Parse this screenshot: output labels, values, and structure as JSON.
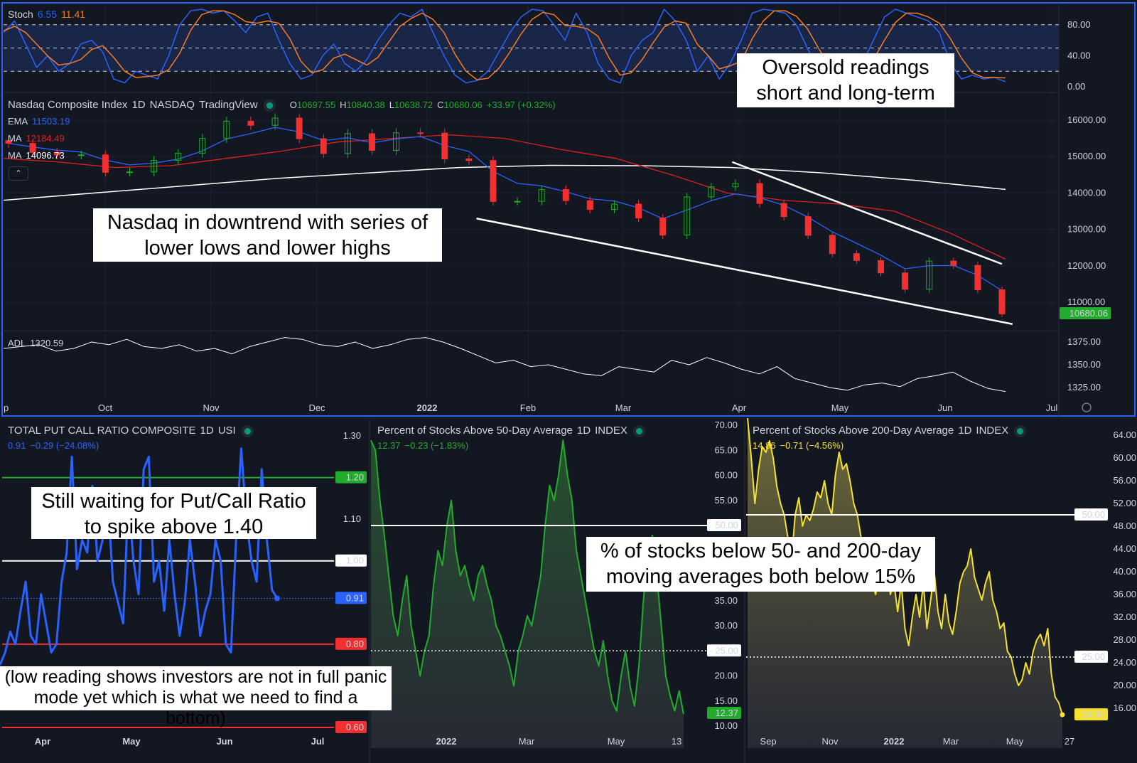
{
  "annotations": {
    "oversold": "Oversold readings short and long-term",
    "downtrend": "Nasdaq in downtrend with series of lower lows and lower highs",
    "putcall_wait": "Still waiting for Put/Call Ratio to spike above 1.40",
    "low_reading": "(low reading shows investors are not in full panic mode yet which is what we need to find a bottom)",
    "breadth": "% of stocks below 50- and 200-day moving averages both below 15%"
  },
  "colors": {
    "background": "#131722",
    "up": "#22ab2c",
    "down": "#f23030",
    "ema": "#2962ff",
    "ma50": "#e02020",
    "ma200": "#ffffff",
    "stoch_k": "#2962ff",
    "stoch_d": "#f57c21",
    "putcall": "#2962ff",
    "pct50": "#22ab2c",
    "pct200": "#f5e130",
    "accent_border": "#2962ff"
  },
  "stoch": {
    "label": "Stoch",
    "k_value": "6.55",
    "d_value": "11.41"
  },
  "main": {
    "title": "Nasdaq Composite Index",
    "interval": "1D",
    "exchange": "NASDAQ",
    "source": "TradingView",
    "o_label": "O",
    "o": "10697.55",
    "h_label": "H",
    "h": "10840.38",
    "l_label": "L",
    "l": "10638.72",
    "c_label": "C",
    "c": "10680.06",
    "change": "+33.97 (+0.32%)",
    "ema_label": "EMA",
    "ema": "11503.19",
    "ma1_label": "MA",
    "ma1": "12184.49",
    "ma2_label": "MA",
    "ma2": "14096.73",
    "price_tag": "10680.06",
    "collapse_icon": "chevron-up"
  },
  "adl": {
    "label": "ADL",
    "value": "1320.59"
  },
  "putcall_panel": {
    "title": "TOTAL PUT CALL RATIO COMPOSITE",
    "interval": "1D",
    "exchange": "USI",
    "value": "0.91",
    "change": "−0.29 (−24.08%)"
  },
  "pct50_panel": {
    "title": "Percent of Stocks Above 50-Day Average",
    "interval": "1D",
    "exchange": "INDEX",
    "value": "12.37",
    "change": "−0.23 (−1.83%)"
  },
  "pct200_panel": {
    "title": "Percent of Stocks Above 200-Day Average",
    "interval": "1D",
    "exchange": "INDEX",
    "value": "14.86",
    "change": "−0.71 (−4.56%)"
  },
  "chart_data": [
    {
      "type": "line",
      "name": "Stoch",
      "ylim": [
        0,
        100
      ],
      "bands": [
        20,
        50,
        80
      ],
      "yticks": [
        "80.00",
        "40.00",
        "0.00"
      ],
      "k": [
        70,
        85,
        55,
        25,
        40,
        20,
        30,
        55,
        60,
        45,
        10,
        5,
        20,
        15,
        10,
        40,
        80,
        98,
        100,
        95,
        98,
        85,
        70,
        90,
        95,
        60,
        30,
        10,
        15,
        40,
        55,
        30,
        20,
        35,
        60,
        80,
        95,
        90,
        100,
        70,
        40,
        15,
        5,
        8,
        20,
        45,
        70,
        90,
        100,
        98,
        80,
        60,
        95,
        70,
        30,
        10,
        5,
        40,
        60,
        70,
        100,
        85,
        60,
        20,
        40,
        10,
        30,
        60,
        95,
        100,
        98,
        95,
        80,
        50,
        20,
        10,
        8,
        15,
        30,
        60,
        90,
        100,
        95,
        90,
        85,
        70,
        30,
        10,
        15,
        10,
        12,
        6.55
      ],
      "d": [
        72,
        78,
        70,
        55,
        40,
        28,
        30,
        35,
        48,
        53,
        38,
        20,
        12,
        13,
        15,
        22,
        43,
        73,
        93,
        98,
        98,
        93,
        84,
        82,
        85,
        82,
        62,
        33,
        18,
        22,
        37,
        42,
        35,
        28,
        38,
        58,
        78,
        88,
        95,
        87,
        70,
        42,
        20,
        9,
        11,
        24,
        45,
        68,
        87,
        96,
        93,
        79,
        78,
        75,
        65,
        37,
        15,
        18,
        35,
        57,
        77,
        85,
        82,
        55,
        40,
        23,
        27,
        33,
        62,
        85,
        98,
        98,
        91,
        75,
        50,
        27,
        13,
        11,
        18,
        35,
        60,
        83,
        95,
        95,
        90,
        82,
        62,
        37,
        18,
        12,
        12,
        11.41
      ]
    },
    {
      "type": "candlestick",
      "name": "Nasdaq Composite Index",
      "period": "2021-09-03 to 2022-06-16 (weekly sampled)",
      "ylim": [
        10500,
        16500
      ],
      "yticks": [
        "16000.00",
        "15000.00",
        "14000.00",
        "13000.00",
        "12000.00",
        "11000.00"
      ],
      "xticks": [
        "Oct",
        "Nov",
        "Dec",
        "2022",
        "Feb",
        "Mar",
        "Apr",
        "May",
        "Jun",
        "Jul"
      ],
      "close": [
        15363,
        15115,
        15044,
        15047,
        14567,
        14579,
        14897,
        15090,
        15498,
        15971,
        15860,
        16057,
        15491,
        15085,
        15630,
        15169,
        15653,
        15645,
        14936,
        14893,
        13768,
        13770,
        14098,
        13791,
        13548,
        13694,
        13313,
        12843,
        13893,
        14169,
        14261,
        13711,
        13351,
        12839,
        12335,
        12145,
        11805,
        11355,
        12131,
        12013,
        11340,
        10680.06
      ],
      "ma50": [
        14950,
        14850,
        14700,
        14750,
        14950,
        15150,
        15400,
        15500,
        15600,
        15500,
        15200,
        14950,
        14500,
        14000,
        13800,
        13700,
        13500,
        12900,
        12184.49
      ],
      "ma200": [
        13800,
        14000,
        14200,
        14400,
        14550,
        14700,
        14760,
        14750,
        14700,
        14550,
        14350,
        14096.73
      ],
      "trendlines": [
        {
          "from": [
            "2022-03-29",
            14850
          ],
          "to": [
            "2022-06-14",
            12050
          ]
        },
        {
          "from": [
            "2022-01-15",
            13300
          ],
          "to": [
            "2022-06-17",
            10400
          ]
        }
      ]
    },
    {
      "type": "line",
      "name": "ADL",
      "ylim": [
        1312,
        1390
      ],
      "yticks": [
        "1375.00",
        "1350.00",
        "1325.00"
      ],
      "values": [
        1368,
        1370,
        1372,
        1365,
        1368,
        1375,
        1372,
        1378,
        1370,
        1368,
        1372,
        1365,
        1368,
        1362,
        1370,
        1375,
        1380,
        1378,
        1372,
        1370,
        1375,
        1368,
        1372,
        1378,
        1380,
        1375,
        1368,
        1360,
        1352,
        1355,
        1348,
        1350,
        1345,
        1340,
        1338,
        1348,
        1345,
        1342,
        1355,
        1350,
        1358,
        1352,
        1345,
        1340,
        1348,
        1335,
        1330,
        1325,
        1322,
        1328,
        1330,
        1326,
        1335,
        1338,
        1342,
        1332,
        1324,
        1320.59
      ]
    },
    {
      "type": "line",
      "name": "TOTAL PUT CALL RATIO COMPOSITE",
      "ylim": [
        0.59,
        1.33
      ],
      "yticks": [
        "1.30",
        "1.10"
      ],
      "levels": [
        {
          "v": 1.2,
          "label": "1.20",
          "color": "#22ab2c"
        },
        {
          "v": 1.0,
          "label": "1.00",
          "color": "#ffffff"
        },
        {
          "v": 0.8,
          "label": "0.80",
          "color": "#f23030"
        },
        {
          "v": 0.6,
          "label": "0.60",
          "color": "#f23030"
        }
      ],
      "xticks": [
        "Apr",
        "May",
        "Jun",
        "Jul"
      ],
      "values": [
        0.75,
        0.78,
        0.83,
        0.8,
        0.88,
        0.95,
        0.82,
        0.8,
        0.92,
        0.85,
        0.78,
        0.8,
        0.95,
        1.02,
        1.25,
        0.98,
        1.05,
        1.02,
        1.18,
        1.0,
        1.05,
        1.15,
        0.95,
        0.9,
        0.85,
        1.15,
        1.0,
        0.92,
        1.22,
        1.25,
        0.95,
        1.0,
        0.88,
        1.05,
        0.92,
        0.82,
        0.9,
        1.05,
        0.95,
        0.82,
        0.88,
        0.92,
        1.05,
        1.0,
        0.8,
        0.78,
        1.05,
        1.27,
        1.1,
        1.0,
        0.95,
        1.22,
        1.05,
        0.93,
        0.91
      ]
    },
    {
      "type": "area",
      "name": "Percent of Stocks Above 50-Day Average",
      "ylim": [
        9,
        71
      ],
      "yticks": [
        "70.00",
        "65.00",
        "60.00",
        "55.00",
        "35.00",
        "30.00",
        "20.00",
        "15.00",
        "10.00"
      ],
      "levels": [
        {
          "v": 50,
          "label": "50.00",
          "style": "solid"
        },
        {
          "v": 25,
          "label": "25.00",
          "style": "dotted"
        }
      ],
      "xticks": [
        "2022",
        "Mar",
        "May",
        "13"
      ],
      "values": [
        67,
        65,
        55,
        48,
        40,
        32,
        28,
        35,
        40,
        30,
        25,
        20,
        25,
        28,
        38,
        45,
        42,
        50,
        55,
        45,
        40,
        42,
        38,
        35,
        40,
        42,
        38,
        35,
        30,
        28,
        25,
        22,
        18,
        25,
        28,
        32,
        30,
        35,
        40,
        50,
        58,
        55,
        60,
        67,
        60,
        55,
        45,
        40,
        35,
        30,
        25,
        22,
        27,
        20,
        15,
        13,
        20,
        25,
        18,
        14,
        22,
        35,
        45,
        48,
        40,
        30,
        20,
        16,
        13,
        17,
        12.37
      ]
    },
    {
      "type": "area",
      "name": "Percent of Stocks Above 200-Day Average",
      "ylim": [
        12,
        66
      ],
      "yticks": [
        "64.00",
        "60.00",
        "56.00",
        "52.00",
        "48.00",
        "44.00",
        "40.00",
        "36.00",
        "32.00",
        "28.00",
        "24.00",
        "20.00",
        "16.00"
      ],
      "levels": [
        {
          "v": 50,
          "label": "50.00",
          "style": "solid"
        },
        {
          "v": 25,
          "label": "25.00",
          "style": "dotted"
        }
      ],
      "xticks": [
        "Sep",
        "Nov",
        "2022",
        "Mar",
        "May",
        "27"
      ],
      "values": [
        67,
        60,
        52,
        58,
        62,
        61,
        63,
        60,
        55,
        52,
        50,
        46,
        42,
        50,
        53,
        48,
        50,
        49,
        51,
        54,
        53,
        56,
        52,
        50,
        57,
        61,
        58,
        59,
        56,
        52,
        50,
        46,
        42,
        40,
        38,
        36,
        40,
        45,
        44,
        36,
        38,
        33,
        38,
        30,
        27,
        32,
        36,
        32,
        38,
        30,
        35,
        40,
        33,
        30,
        36,
        31,
        29,
        33,
        38,
        40,
        41,
        44,
        39,
        37,
        35,
        38,
        40,
        35,
        33,
        30,
        31,
        26,
        25,
        22,
        20,
        21,
        24,
        22,
        26,
        28,
        29,
        27,
        30,
        22,
        18,
        17,
        14.86
      ]
    }
  ]
}
